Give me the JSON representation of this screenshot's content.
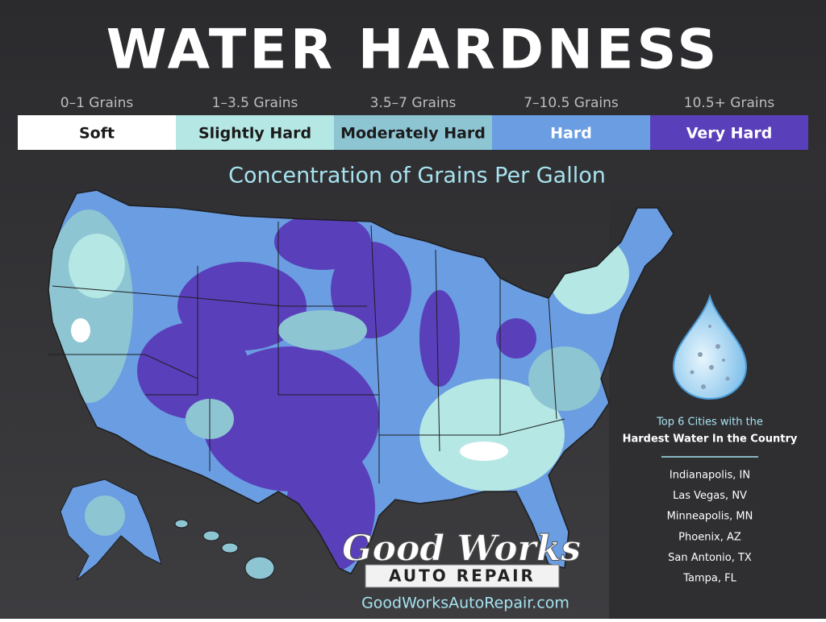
{
  "header": {
    "title": "WATER HARDNESS"
  },
  "legend": [
    {
      "range": "0–1 Grains",
      "label": "Soft",
      "color": "#ffffff",
      "text_color": "#1b1b1b"
    },
    {
      "range": "1–3.5 Grains",
      "label": "Slightly Hard",
      "color": "#b5e7e4",
      "text_color": "#1b1b1b"
    },
    {
      "range": "3.5–7 Grains",
      "label": "Moderately Hard",
      "color": "#8ec5d3",
      "text_color": "#1b1b1b"
    },
    {
      "range": "7–10.5 Grains",
      "label": "Hard",
      "color": "#6a9de2",
      "text_color": "#ffffff"
    },
    {
      "range": "10.5+ Grains",
      "label": "Very Hard",
      "color": "#5a3fba",
      "text_color": "#ffffff"
    }
  ],
  "subtitle": "Concentration of Grains Per Gallon",
  "sidebar": {
    "heading_line1": "Top 6 Cities with the",
    "heading_line2": "Hardest Water In the Country",
    "cities": [
      "Indianapolis, IN",
      "Las Vegas, NV",
      "Minneapolis, MN",
      "Phoenix, AZ",
      "San Antonio, TX",
      "Tampa, FL"
    ]
  },
  "brand": {
    "name_line1": "Good Works",
    "name_line2": "AUTO REPAIR",
    "url": "GoodWorksAutoRepair.com"
  }
}
